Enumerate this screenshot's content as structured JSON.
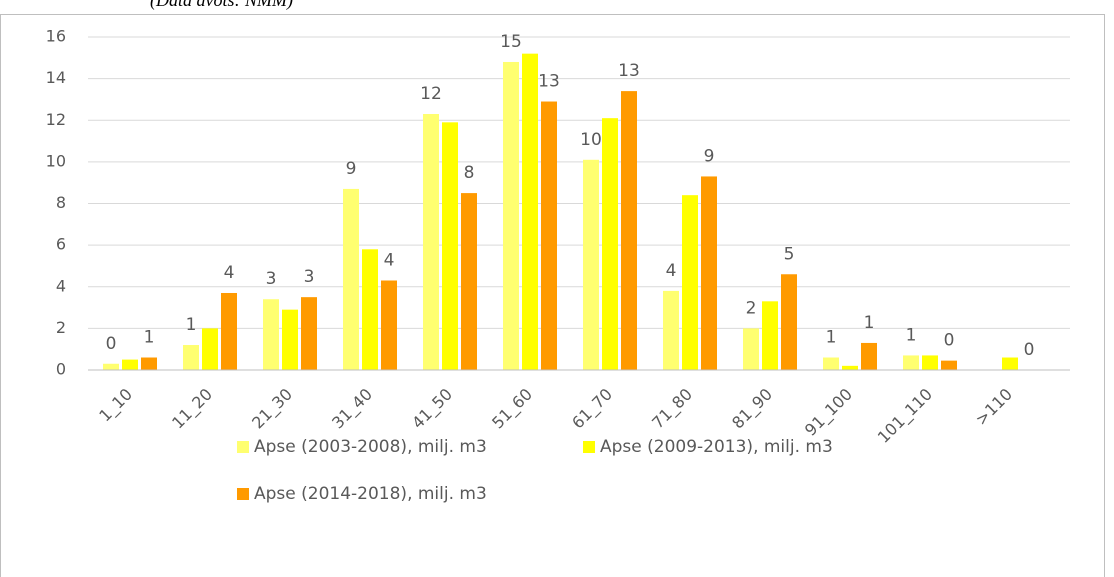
{
  "source_note": "(Data avots: NMM)",
  "chart_data": {
    "type": "bar",
    "categories": [
      "1_10",
      "11_20",
      "21_30",
      "31_40",
      "41_50",
      "51_60",
      "61_70",
      "71_80",
      "81_90",
      "91_100",
      "101_110",
      ">110"
    ],
    "series": [
      {
        "name": "Apse (2003-2008), milj. m3",
        "color": "#ffff70",
        "values": [
          0.3,
          1.2,
          3.4,
          8.7,
          12.3,
          14.8,
          10.1,
          3.8,
          2.0,
          0.6,
          0.7,
          null
        ],
        "value_labels": [
          "0",
          "1",
          "3",
          "9",
          "12",
          "15",
          "10",
          "4",
          "2",
          "1",
          "1",
          null
        ]
      },
      {
        "name": "Apse (2009-2013), milj. m3",
        "color": "#ffff00",
        "values": [
          0.5,
          2.0,
          2.9,
          5.8,
          11.9,
          15.2,
          12.1,
          8.4,
          3.3,
          0.2,
          0.7,
          0.6
        ]
      },
      {
        "name": "Apse (2014-2018), milj. m3",
        "color": "#ff9a00",
        "values": [
          0.6,
          3.7,
          3.5,
          4.3,
          8.5,
          12.9,
          13.4,
          9.3,
          4.6,
          1.3,
          0.45,
          0
        ],
        "value_labels": [
          "1",
          "4",
          "3",
          "4",
          "8",
          "13",
          "13",
          "9",
          "5",
          "1",
          "0",
          "0"
        ]
      }
    ],
    "ylim": [
      0,
      16
    ],
    "yticks": [
      0,
      2,
      4,
      6,
      8,
      10,
      12,
      14,
      16
    ],
    "grid": true,
    "legend": "bottom"
  }
}
